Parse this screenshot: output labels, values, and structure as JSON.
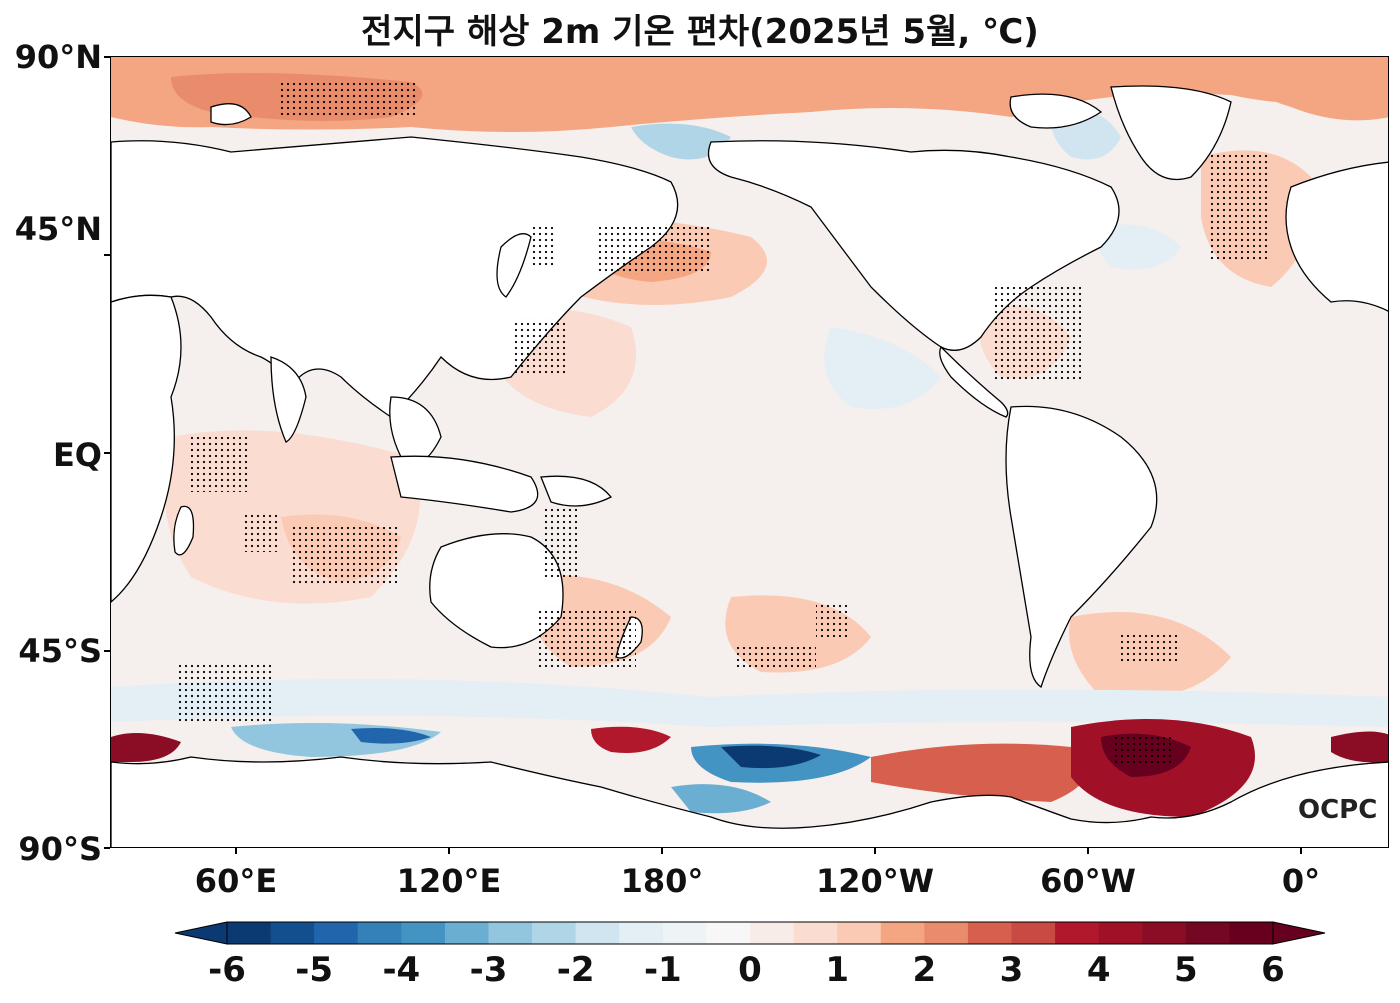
{
  "title": "전지구 해상 2m 기온 편차(2025년 5월, ℃)",
  "y_axis": {
    "tick_labels": [
      "90°N",
      "45°N",
      "EQ",
      "45°S",
      "90°S"
    ]
  },
  "x_axis": {
    "tick_labels": [
      "60°E",
      "120°E",
      "180°",
      "120°W",
      "60°W",
      "0°"
    ]
  },
  "colorbar": {
    "tick_labels": [
      "-6",
      "-5",
      "-4",
      "-3",
      "-2",
      "-1",
      "0",
      "1",
      "2",
      "3",
      "4",
      "5",
      "6"
    ],
    "levels": [
      -6,
      -5.5,
      -5,
      -4.5,
      -4,
      -3.5,
      -3,
      -2.5,
      -2,
      -1.5,
      -1,
      -0.5,
      0,
      0.5,
      1,
      1.5,
      2,
      2.5,
      3,
      3.5,
      4,
      4.5,
      5,
      5.5,
      6
    ],
    "colors": [
      "#0b3a73",
      "#134f8f",
      "#2166ac",
      "#3480b9",
      "#4393c3",
      "#6aaed2",
      "#92c5de",
      "#b0d5e7",
      "#d1e5f0",
      "#e3eef5",
      "#eef3f6",
      "#f7f7f7",
      "#f7ece8",
      "#fbdcd0",
      "#fbcab4",
      "#f4a582",
      "#e88c6c",
      "#d6604d",
      "#c94a43",
      "#b2182b",
      "#a01128",
      "#8a0c25",
      "#740722",
      "#67001f"
    ],
    "extend": "both"
  },
  "logo": "OCPC",
  "colors": {
    "land": "#ffffff",
    "ocean_base": "#f4eeec",
    "frame": "#000000"
  }
}
